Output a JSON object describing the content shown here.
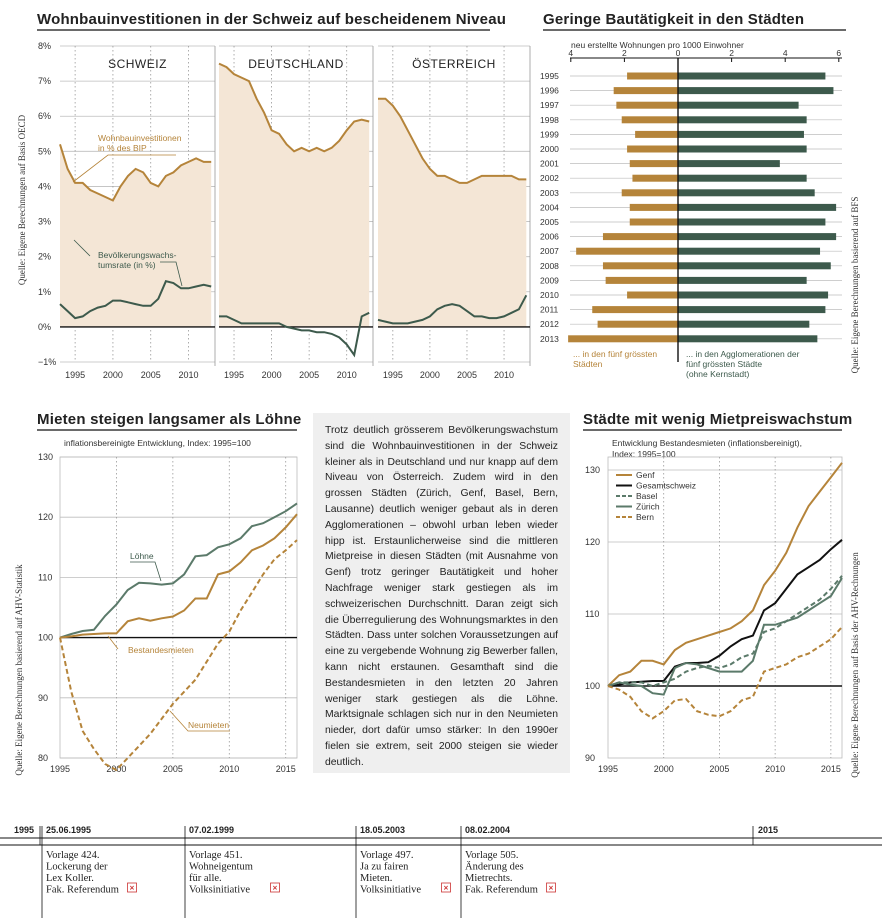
{
  "colors": {
    "orange": "#b5843a",
    "green": "#3d5a4c",
    "fill": "#f4e6d6",
    "grid": "#bdbdbd",
    "black": "#111111",
    "dashgreen": "#5b7a6a"
  },
  "panel1": {
    "title": "Wohnbauinvestitionen in der Schweiz auf bescheidenem Niveau",
    "source": "Quelle: Eigene Berechnungen auf Basis OECD",
    "ylabels": [
      "8%",
      "7%",
      "6%",
      "5%",
      "4%",
      "3%",
      "2%",
      "1%",
      "0%",
      "−1%"
    ],
    "xlabels": [
      "1995",
      "2000",
      "2005",
      "2010"
    ],
    "label_invest": [
      "Wohnbauinvestitionen",
      "in % des BIP"
    ],
    "label_pop": [
      "Bevölkerungswachs-",
      "tumsrate (in %)"
    ]
  },
  "panel2": {
    "title": "Geringe Bautätigkeit in den Städten",
    "subtitle": "neu erstellte Wohnungen pro 1000 Einwohner",
    "source": "Quelle: Eigene Berechnungen basierend auf BFS",
    "left_ticks": [
      "4",
      "2",
      "0"
    ],
    "right_ticks": [
      "2",
      "4",
      "6"
    ],
    "legend_left": [
      "... in den fünf grössten",
      "Städten"
    ],
    "legend_right": [
      "... in den Agglomerationen der",
      "fünf grössten Städte",
      "(ohne Kernstadt)"
    ]
  },
  "panel3": {
    "title": "Mieten steigen langsamer als Löhne",
    "subtitle": "inflationsbereinigte Entwicklung, Index: 1995=100",
    "source": "Quelle: Eigene Berechnungen basierend auf AHV-Statistik",
    "ylabels": [
      "130",
      "120",
      "110",
      "100",
      "90",
      "80"
    ],
    "xlabels": [
      "1995",
      "2000",
      "2005",
      "2010",
      "2015"
    ],
    "label_loehne": "Löhne",
    "label_bestand": "Bestandesmieten",
    "label_neu": "Neumieten"
  },
  "panel4": {
    "title": "Städte mit wenig Mietpreiswachstum",
    "subtitle": [
      "Entwicklung Bestandesmieten (inflationsbereinigt),",
      "Index: 1995=100"
    ],
    "source": "Quelle: Eigene Berechnungen auf Basis der AHV-Rechnungen",
    "ylabels": [
      "130",
      "120",
      "110",
      "100",
      "90"
    ],
    "xlabels": [
      "1995",
      "2000",
      "2005",
      "2010",
      "2015"
    ],
    "legend": [
      "Genf",
      "Gesamtschweiz",
      "Basel",
      "Zürich",
      "Bern"
    ]
  },
  "text": "Trotz deutlich grösserem Bevölkerungswachstum sind die Wohnbauinvestitionen in der Schweiz kleiner als in Deutschland und nur knapp auf dem Niveau von Österreich. Zudem wird in den grossen Städten (Zürich, Genf, Basel, Bern, Lausanne) deutlich weniger gebaut als in deren Agglomerationen – obwohl urban leben wieder hipp ist. Erstaunlicherweise sind die mittleren Mietpreise in diesen Städten (mit Ausnahme von Genf) trotz geringer Bautätigkeit und hoher Nachfrage weniger stark gestiegen als im schweizerischen Durchschnitt. Daran zeigt sich die Überregulierung des Wohnungsmarktes in den Städten. Dass unter solchen Voraussetzungen auf eine zu vergebende Wohnung zig Bewerber fallen, kann nicht erstaunen. Gesamthaft sind die Bestandesmieten in den letzten 20 Jahren weniger stark gestiegen als die Löhne. Marktsignale schlagen sich nur in den Neumieten nieder, dort dafür umso stärker: In den 1990er fielen sie extrem, seit 2000 steigen sie wieder deutlich.",
  "timeline": {
    "start": "1995",
    "end": "2015",
    "events": [
      {
        "date": "25.06.1995",
        "lines": [
          "Vorlage 424.",
          "Lockerung der",
          "Lex Koller.",
          "Fak. Referendum"
        ]
      },
      {
        "date": "07.02.1999",
        "lines": [
          "Vorlage 451.",
          "Wohneigentum",
          "für alle.",
          "Volksinitiative"
        ]
      },
      {
        "date": "18.05.2003",
        "lines": [
          "Vorlage 497.",
          "Ja zu fairen",
          "Mieten.",
          "Volksinitiative"
        ]
      },
      {
        "date": "08.02.2004",
        "lines": [
          "Vorlage 505.",
          "Änderung des",
          "Mietrechts.",
          "Fak. Referendum"
        ]
      }
    ]
  },
  "chart_data": [
    {
      "type": "line",
      "title": "Wohnbauinvestitionen in der Schweiz auf bescheidenem Niveau",
      "ylim": [
        -1,
        8
      ],
      "panels": [
        {
          "name": "SCHWEIZ",
          "series": [
            {
              "name": "Wohnbauinvestitionen in % des BIP",
              "x": [
                1993,
                1994,
                1995,
                1996,
                1997,
                1998,
                1999,
                2000,
                2001,
                2002,
                2003,
                2004,
                2005,
                2006,
                2007,
                2008,
                2009,
                2010,
                2011,
                2012,
                2013
              ],
              "values": [
                5.2,
                4.5,
                4.1,
                4.1,
                3.9,
                3.8,
                3.7,
                3.6,
                4.0,
                4.3,
                4.5,
                4.4,
                4.1,
                4.0,
                4.3,
                4.4,
                4.6,
                4.7,
                4.8,
                4.7,
                4.7
              ]
            },
            {
              "name": "Bevölkerungswachstumsrate (in %)",
              "x": [
                1993,
                1994,
                1995,
                1996,
                1997,
                1998,
                1999,
                2000,
                2001,
                2002,
                2003,
                2004,
                2005,
                2006,
                2007,
                2008,
                2009,
                2010,
                2011,
                2012,
                2013
              ],
              "values": [
                0.65,
                0.45,
                0.25,
                0.3,
                0.45,
                0.55,
                0.6,
                0.75,
                0.75,
                0.7,
                0.65,
                0.6,
                0.6,
                0.8,
                1.3,
                1.25,
                1.1,
                1.1,
                1.15,
                1.2,
                1.15
              ]
            }
          ]
        },
        {
          "name": "DEUTSCHLAND",
          "series": [
            {
              "name": "Wohnbauinvestitionen",
              "x": [
                1993,
                1994,
                1995,
                1996,
                1997,
                1998,
                1999,
                2000,
                2001,
                2002,
                2003,
                2004,
                2005,
                2006,
                2007,
                2008,
                2009,
                2010,
                2011,
                2012,
                2013
              ],
              "values": [
                7.5,
                7.4,
                7.2,
                7.1,
                7.0,
                6.5,
                6.1,
                5.6,
                5.5,
                5.2,
                5.0,
                5.1,
                5.0,
                5.1,
                5.0,
                5.1,
                5.3,
                5.6,
                5.85,
                5.9,
                5.85
              ]
            },
            {
              "name": "Bevölkerungswachstumsrate",
              "x": [
                1993,
                1994,
                1995,
                1996,
                1997,
                1998,
                1999,
                2000,
                2001,
                2002,
                2003,
                2004,
                2005,
                2006,
                2007,
                2008,
                2009,
                2010,
                2011,
                2012,
                2013
              ],
              "values": [
                0.3,
                0.3,
                0.2,
                0.1,
                0.1,
                0.1,
                0.1,
                0.1,
                0.1,
                0.0,
                -0.05,
                -0.1,
                -0.1,
                -0.15,
                -0.15,
                -0.2,
                -0.3,
                -0.5,
                -0.8,
                0.3,
                0.4
              ]
            }
          ]
        },
        {
          "name": "ÖSTERREICH",
          "series": [
            {
              "name": "Wohnbauinvestitionen",
              "x": [
                1993,
                1994,
                1995,
                1996,
                1997,
                1998,
                1999,
                2000,
                2001,
                2002,
                2003,
                2004,
                2005,
                2006,
                2007,
                2008,
                2009,
                2010,
                2011,
                2012,
                2013
              ],
              "values": [
                6.5,
                6.5,
                6.3,
                6.0,
                5.6,
                5.2,
                4.8,
                4.5,
                4.3,
                4.3,
                4.2,
                4.1,
                4.1,
                4.2,
                4.3,
                4.3,
                4.3,
                4.3,
                4.3,
                4.2,
                4.2
              ]
            },
            {
              "name": "Bevölkerungswachstumsrate",
              "x": [
                1993,
                1994,
                1995,
                1996,
                1997,
                1998,
                1999,
                2000,
                2001,
                2002,
                2003,
                2004,
                2005,
                2006,
                2007,
                2008,
                2009,
                2010,
                2011,
                2012,
                2013
              ],
              "values": [
                0.2,
                0.15,
                0.1,
                0.1,
                0.1,
                0.15,
                0.2,
                0.3,
                0.5,
                0.6,
                0.65,
                0.6,
                0.45,
                0.3,
                0.3,
                0.25,
                0.25,
                0.3,
                0.4,
                0.5,
                0.9
              ]
            }
          ]
        }
      ]
    },
    {
      "type": "bar",
      "title": "Geringe Bautätigkeit in den Städten",
      "categories": [
        "1995",
        "1996",
        "1997",
        "1998",
        "1999",
        "2000",
        "2001",
        "2002",
        "2003",
        "2004",
        "2005",
        "2006",
        "2007",
        "2008",
        "2009",
        "2010",
        "2011",
        "2012",
        "2013"
      ],
      "series": [
        {
          "name": "... in den fünf grössten Städten",
          "values": [
            1.9,
            2.4,
            2.3,
            2.1,
            1.6,
            1.9,
            1.8,
            1.7,
            2.1,
            1.8,
            1.8,
            2.8,
            3.8,
            2.8,
            2.7,
            1.9,
            3.2,
            3.0,
            4.1
          ]
        },
        {
          "name": "... in den Agglomerationen der fünf grössten Städte (ohne Kernstadt)",
          "values": [
            5.5,
            5.8,
            4.5,
            4.8,
            4.7,
            4.8,
            3.8,
            4.8,
            5.1,
            5.9,
            5.5,
            5.9,
            5.3,
            5.7,
            4.8,
            5.6,
            5.5,
            4.9,
            5.2
          ]
        }
      ]
    },
    {
      "type": "line",
      "title": "Mieten steigen langsamer als Löhne",
      "ylim": [
        80,
        130
      ],
      "x": [
        1995,
        1996,
        1997,
        1998,
        1999,
        2000,
        2001,
        2002,
        2003,
        2004,
        2005,
        2006,
        2007,
        2008,
        2009,
        2010,
        2011,
        2012,
        2013,
        2014,
        2015,
        2016
      ],
      "series": [
        {
          "name": "Löhne",
          "values": [
            100,
            100.6,
            101.1,
            101.3,
            103.6,
            105.5,
            107.9,
            109.1,
            109.0,
            108.8,
            109.0,
            110.5,
            113.5,
            113.7,
            115.0,
            115.5,
            116.5,
            118.5,
            119.0,
            120.0,
            121.0,
            122.3
          ]
        },
        {
          "name": "Bestandesmieten",
          "values": [
            100,
            100.2,
            100.5,
            100.6,
            100.7,
            100.7,
            102.7,
            103.2,
            102.8,
            103.2,
            103.5,
            104.5,
            106.5,
            106.5,
            110.5,
            111.0,
            112.5,
            114.5,
            115.3,
            116.5,
            118.3,
            120.5
          ]
        },
        {
          "name": "Neumieten",
          "values": [
            100,
            91.0,
            84.5,
            81.5,
            79.0,
            78.0,
            80.0,
            82.0,
            84.0,
            86.5,
            89.0,
            91.0,
            93.0,
            96.0,
            99.0,
            101.0,
            104.5,
            107.5,
            110.5,
            113.0,
            114.5,
            116.2
          ]
        }
      ]
    },
    {
      "type": "line",
      "title": "Städte mit wenig Mietpreiswachstum",
      "ylim": [
        90,
        130
      ],
      "x": [
        1995,
        1996,
        1997,
        1998,
        1999,
        2000,
        2001,
        2002,
        2003,
        2004,
        2005,
        2006,
        2007,
        2008,
        2009,
        2010,
        2011,
        2012,
        2013,
        2014,
        2015,
        2016
      ],
      "series": [
        {
          "name": "Genf",
          "values": [
            100,
            101.5,
            102,
            103.5,
            103.5,
            103,
            105,
            106,
            106.5,
            107,
            107.5,
            108,
            109,
            110.5,
            114,
            116,
            118.5,
            122,
            125,
            127,
            129,
            131
          ]
        },
        {
          "name": "Gesamtschweiz",
          "values": [
            100,
            100.2,
            100.5,
            100.6,
            100.7,
            100.7,
            102.7,
            103.2,
            103.2,
            103.3,
            104.2,
            105.5,
            106.5,
            107,
            110.5,
            111.5,
            113.5,
            115.5,
            116.5,
            117.5,
            119,
            120.3
          ]
        },
        {
          "name": "Basel",
          "values": [
            100,
            100.5,
            100.5,
            100.5,
            100,
            100.5,
            101,
            102,
            102.5,
            102.8,
            102.5,
            103,
            104,
            104.5,
            107.5,
            108,
            109,
            110,
            111,
            112,
            113.5,
            115.3
          ]
        },
        {
          "name": "Zürich",
          "values": [
            100,
            100.5,
            100.2,
            100,
            99,
            98.8,
            102.5,
            103.2,
            103,
            102.5,
            102,
            102,
            102,
            103.5,
            108.5,
            108.5,
            109,
            109.5,
            110.5,
            111.5,
            112.5,
            115
          ]
        },
        {
          "name": "Bern",
          "values": [
            100,
            99.5,
            98.5,
            96.5,
            95.5,
            96.5,
            98,
            98.2,
            96.5,
            96,
            95.8,
            96.5,
            98,
            98.5,
            102,
            102.5,
            103,
            104,
            104.5,
            105.5,
            106.5,
            108.2
          ]
        }
      ]
    }
  ]
}
